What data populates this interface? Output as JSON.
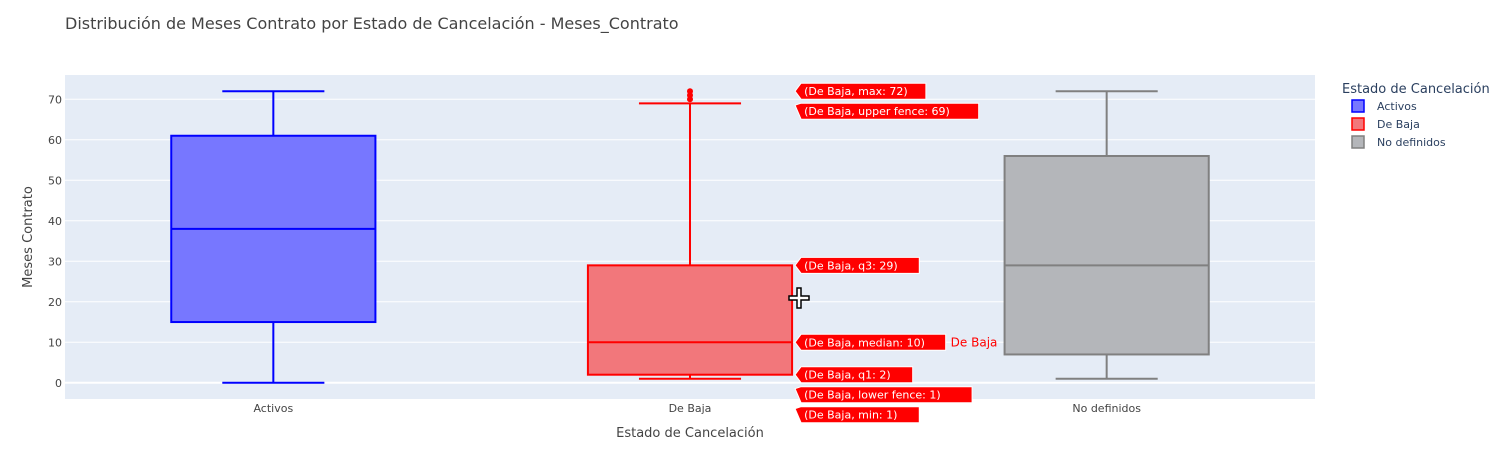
{
  "chart_data": {
    "type": "box",
    "title": "Distribución de Meses Contrato por Estado de Cancelación - Meses_Contrato",
    "xlabel": "Estado de Cancelación",
    "ylabel": "Meses Contrato",
    "ylim": [
      -4,
      76
    ],
    "yticks": [
      0,
      10,
      20,
      30,
      40,
      50,
      60,
      70
    ],
    "grid": true,
    "legend": {
      "title": "Estado de Cancelación",
      "placement": "top-right",
      "items": [
        "Activos",
        "De Baja",
        "No definidos"
      ]
    },
    "categories": [
      "Activos",
      "De Baja",
      "No definidos"
    ],
    "series": [
      {
        "name": "Activos",
        "color": "#0000ff",
        "fill": "#7777ff",
        "lower_fence": 0,
        "q1": 15,
        "median": 38,
        "q3": 61,
        "upper_fence": 72,
        "outliers": []
      },
      {
        "name": "De Baja",
        "color": "#ff0000",
        "fill": "#f2777b",
        "lower_fence": 1,
        "q1": 2,
        "median": 10,
        "q3": 29,
        "upper_fence": 69,
        "outliers": [
          70,
          71,
          72
        ]
      },
      {
        "name": "No definidos",
        "color": "#808080",
        "fill": "#b4b6ba",
        "lower_fence": 1,
        "q1": 7,
        "median": 29,
        "q3": 56,
        "upper_fence": 72,
        "outliers": []
      }
    ],
    "hover": {
      "series_index": 1,
      "labels": [
        {
          "text": "(De Baja, max: 72)",
          "value": 72
        },
        {
          "text": "(De Baja, upper fence: 69)",
          "value": 69
        },
        {
          "text": "(De Baja, q3: 29)",
          "value": 29
        },
        {
          "text": "(De Baja, median: 10)",
          "value": 10
        },
        {
          "text": "(De Baja, q1: 2)",
          "value": 2
        },
        {
          "text": "(De Baja, lower fence: 1)",
          "value": 1
        },
        {
          "text": "(De Baja, min: 1)",
          "value": 1
        }
      ],
      "trace_name": "De Baja"
    }
  }
}
